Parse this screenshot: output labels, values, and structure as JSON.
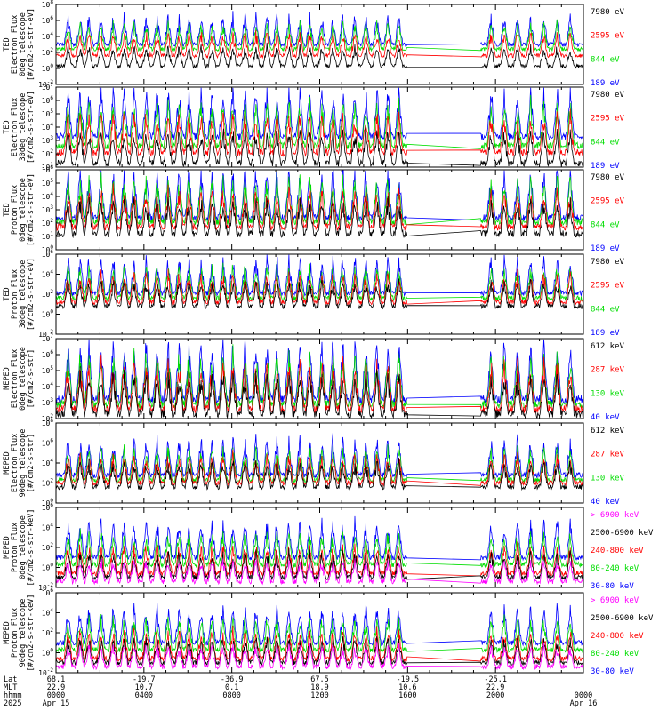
{
  "figure": {
    "panel_labels": [
      [
        "TED",
        "Electron Flux",
        "0deg telescope",
        "[#/cm2-s-str-eV]"
      ],
      [
        "TED",
        "Electron Flux",
        "30deg telescope",
        "[#/cm2-s-str-eV]"
      ],
      [
        "TED",
        "Proton Flux",
        "0deg telescope",
        "[#/cm2-s-str-eV]"
      ],
      [
        "TED",
        "Proton Flux",
        "30deg telescope",
        "[#/cm2-s-str-eV]"
      ],
      [
        "MEPED",
        "Electron Flux",
        "0deg telescope",
        "[#/cm2-s-str]"
      ],
      [
        "MEPED",
        "Electron Flux",
        "90deg telescope",
        "[#/cm2-s-str]"
      ],
      [
        "MEPED",
        "Proton Flux",
        "0deg telescope",
        "[#/cm2-s-str-keV]"
      ],
      [
        "MEPED",
        "Proton Flux",
        "90deg telescope",
        "[#/cm2-s-str-keV]"
      ]
    ],
    "bottom_axis": {
      "row_labels": [
        "Lat",
        "MLT",
        "hhmm",
        "2025"
      ],
      "lat": [
        "68.1",
        "-19.7",
        "-36.9",
        "67.5",
        "-19.5",
        "-25.1",
        ""
      ],
      "mlt": [
        "22.9",
        "10.7",
        "0.1",
        "18.9",
        "10.6",
        "22.9",
        ""
      ],
      "hhmm": [
        "0000",
        "0400",
        "0800",
        "1200",
        "1600",
        "2000",
        "0000"
      ],
      "date_left": "Apr 15",
      "date_right": "Apr 16"
    }
  },
  "chart_data": [
    {
      "type": "line",
      "title": "TED Electron Flux 0deg telescope",
      "ylabel": "[#/cm2-s-str-eV]",
      "y_scale": "log",
      "ylim_exp": [
        -2,
        8
      ],
      "ytick_exps": [
        -2,
        0,
        2,
        4,
        6,
        8
      ],
      "x_range_hours": [
        0,
        24
      ],
      "gap_hours": [
        16.0,
        19.3
      ],
      "series": [
        {
          "name": "7980 eV",
          "color": "#000000",
          "typical_exp": 0.3
        },
        {
          "name": "2595 eV",
          "color": "#ff0000",
          "typical_exp": 1.6
        },
        {
          "name": "844 eV",
          "color": "#00dd00",
          "typical_exp": 2.4
        },
        {
          "name": "189 eV",
          "color": "#0000ff",
          "typical_exp": 3.0
        }
      ]
    },
    {
      "type": "line",
      "title": "TED Electron Flux 30deg telescope",
      "ylabel": "[#/cm2-s-str-eV]",
      "y_scale": "log",
      "ylim_exp": [
        1,
        7
      ],
      "ytick_exps": [
        1,
        2,
        3,
        4,
        5,
        6,
        7
      ],
      "x_range_hours": [
        0,
        24
      ],
      "gap_hours": [
        16.0,
        19.3
      ],
      "series": [
        {
          "name": "7980 eV",
          "color": "#000000",
          "typical_exp": 1.3
        },
        {
          "name": "2595 eV",
          "color": "#ff0000",
          "typical_exp": 2.1
        },
        {
          "name": "844 eV",
          "color": "#00dd00",
          "typical_exp": 2.6
        },
        {
          "name": "189 eV",
          "color": "#0000ff",
          "typical_exp": 3.3
        }
      ]
    },
    {
      "type": "line",
      "title": "TED Proton Flux 0deg telescope",
      "ylabel": "[#/cm2-s-str-eV]",
      "y_scale": "log",
      "ylim_exp": [
        0,
        6
      ],
      "ytick_exps": [
        0,
        1,
        2,
        3,
        4,
        5,
        6
      ],
      "x_range_hours": [
        0,
        24
      ],
      "gap_hours": [
        16.0,
        19.3
      ],
      "series": [
        {
          "name": "7980 eV",
          "color": "#000000",
          "typical_exp": 1.2
        },
        {
          "name": "2595 eV",
          "color": "#ff0000",
          "typical_exp": 1.7
        },
        {
          "name": "844 eV",
          "color": "#00dd00",
          "typical_exp": 2.1
        },
        {
          "name": "189 eV",
          "color": "#0000ff",
          "typical_exp": 2.4
        }
      ]
    },
    {
      "type": "line",
      "title": "TED Proton Flux 30deg telescope",
      "ylabel": "[#/cm2-s-str-eV]",
      "y_scale": "log",
      "ylim_exp": [
        -2,
        6
      ],
      "ytick_exps": [
        -2,
        0,
        2,
        4,
        6
      ],
      "x_range_hours": [
        0,
        24
      ],
      "gap_hours": [
        16.0,
        19.3
      ],
      "series": [
        {
          "name": "7980 eV",
          "color": "#000000",
          "typical_exp": 0.8
        },
        {
          "name": "2595 eV",
          "color": "#ff0000",
          "typical_exp": 1.2
        },
        {
          "name": "844 eV",
          "color": "#00dd00",
          "typical_exp": 1.6
        },
        {
          "name": "189 eV",
          "color": "#0000ff",
          "typical_exp": 2.1
        }
      ]
    },
    {
      "type": "line",
      "title": "MEPED Electron Flux 0deg telescope",
      "ylabel": "[#/cm2-s-str]",
      "y_scale": "log",
      "ylim_exp": [
        2,
        7
      ],
      "ytick_exps": [
        2,
        3,
        4,
        5,
        6,
        7
      ],
      "x_range_hours": [
        0,
        24
      ],
      "gap_hours": [
        16.0,
        19.3
      ],
      "series": [
        {
          "name": "612 keV",
          "color": "#000000",
          "typical_exp": 2.3
        },
        {
          "name": "287 keV",
          "color": "#ff0000",
          "typical_exp": 2.6
        },
        {
          "name": "130 keV",
          "color": "#00dd00",
          "typical_exp": 2.9
        },
        {
          "name": "40 keV",
          "color": "#0000ff",
          "typical_exp": 3.2
        }
      ]
    },
    {
      "type": "line",
      "title": "MEPED Electron Flux 90deg telescope",
      "ylabel": "[#/cm2-s-str]",
      "y_scale": "log",
      "ylim_exp": [
        0,
        8
      ],
      "ytick_exps": [
        0,
        2,
        4,
        6,
        8
      ],
      "x_range_hours": [
        0,
        24
      ],
      "gap_hours": [
        16.0,
        19.3
      ],
      "series": [
        {
          "name": "612 keV",
          "color": "#000000",
          "typical_exp": 1.6
        },
        {
          "name": "287 keV",
          "color": "#ff0000",
          "typical_exp": 2.0
        },
        {
          "name": "130 keV",
          "color": "#00dd00",
          "typical_exp": 2.3
        },
        {
          "name": "40 keV",
          "color": "#0000ff",
          "typical_exp": 2.8
        }
      ]
    },
    {
      "type": "line",
      "title": "MEPED Proton Flux 0deg telescope",
      "ylabel": "[#/cm2-s-str-keV]",
      "y_scale": "log",
      "ylim_exp": [
        -2,
        6
      ],
      "ytick_exps": [
        -2,
        0,
        2,
        4,
        6
      ],
      "x_range_hours": [
        0,
        24
      ],
      "gap_hours": [
        16.0,
        19.3
      ],
      "series": [
        {
          "name": "> 6900 keV",
          "color": "#ff00ff",
          "typical_exp": -1.4
        },
        {
          "name": "2500-6900 keV",
          "color": "#000000",
          "typical_exp": -1.0
        },
        {
          "name": "240-800 keV",
          "color": "#ff0000",
          "typical_exp": -0.6
        },
        {
          "name": "80-240 keV",
          "color": "#00dd00",
          "typical_exp": 0.3
        },
        {
          "name": "30-80 keV",
          "color": "#0000ff",
          "typical_exp": 1.0
        }
      ]
    },
    {
      "type": "line",
      "title": "MEPED Proton Flux 90deg telescope",
      "ylabel": "[#/cm2-s-str-keV]",
      "y_scale": "log",
      "ylim_exp": [
        -2,
        6
      ],
      "ytick_exps": [
        -2,
        0,
        2,
        4,
        6
      ],
      "x_range_hours": [
        0,
        24
      ],
      "gap_hours": [
        16.0,
        19.3
      ],
      "series": [
        {
          "name": "> 6900 keV",
          "color": "#ff00ff",
          "typical_exp": -1.4
        },
        {
          "name": "2500-6900 keV",
          "color": "#000000",
          "typical_exp": -1.0
        },
        {
          "name": "240-800 keV",
          "color": "#ff0000",
          "typical_exp": -0.6
        },
        {
          "name": "80-240 keV",
          "color": "#00dd00",
          "typical_exp": 0.3
        },
        {
          "name": "30-80 keV",
          "color": "#0000ff",
          "typical_exp": 1.0
        }
      ]
    }
  ]
}
